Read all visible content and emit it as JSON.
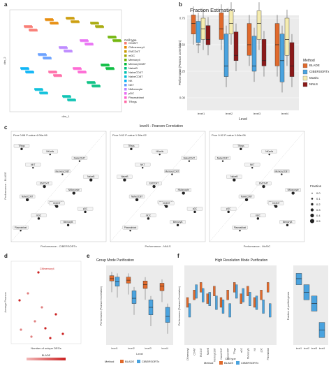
{
  "panels": {
    "a": {
      "label": "a",
      "xaxis": "dim_1",
      "yaxis": "dim_2",
      "legend_title": "Cell type",
      "cell_types": [
        {
          "name": "CD4NT",
          "color": "#f8766d"
        },
        {
          "name": "CMmemory4",
          "color": "#e58700"
        },
        {
          "name": "EMCD4T",
          "color": "#c99800"
        },
        {
          "name": "mDC",
          "color": "#a3a500"
        },
        {
          "name": "Memory4",
          "color": "#6bb100"
        },
        {
          "name": "MemoryCD8T",
          "color": "#00ba38"
        },
        {
          "name": "NaiveB",
          "color": "#00bf7d"
        },
        {
          "name": "NaiveCD4T",
          "color": "#00c0af"
        },
        {
          "name": "NaiveCD8T",
          "color": "#00bcd8"
        },
        {
          "name": "NK",
          "color": "#00b0f6"
        },
        {
          "name": "NKT",
          "color": "#619cff"
        },
        {
          "name": "NMonocyte",
          "color": "#b983ff"
        },
        {
          "name": "pDC",
          "color": "#e76bf3"
        },
        {
          "name": "Plasmablast",
          "color": "#fd61d1"
        },
        {
          "name": "TRegs",
          "color": "#ff67a4"
        }
      ]
    },
    "b": {
      "label": "b",
      "title": "Fraction Estimation",
      "ylabel": "Performance (Pearson correlation)",
      "xlabel": "Level",
      "legend_title": "Method",
      "methods": [
        {
          "name": "BLADE",
          "color": "#e06a2c"
        },
        {
          "name": "CIBERSORTx",
          "color": "#4aa3df"
        },
        {
          "name": "MuSiC",
          "color": "#f5ecb0"
        },
        {
          "name": "NNLS",
          "color": "#8b1a1a"
        }
      ],
      "ticks_y": [
        "0.00",
        "0.25",
        "0.50",
        "0.75"
      ],
      "levels": [
        "level1",
        "level2",
        "level3",
        "level4"
      ]
    },
    "c": {
      "label": "c",
      "title": "level4 - Pearson Correlation",
      "ylabel": "Performance - BLADE",
      "legend_title": "Fraction",
      "fraction_levels": [
        "0.0",
        "0.1",
        "0.2",
        "0.3",
        "0.4",
        "0.5"
      ],
      "sub": [
        {
          "stat": "Pcor 0.88  P-value 4.08e-06",
          "xlabel": "Performance - CIBERSORTx"
        },
        {
          "stat": "Pcor 0.62  P-value 1.36e-02",
          "xlabel": "Performance - NNLS"
        },
        {
          "stat": "Pcor 0.92  P-value 1.66e-06",
          "xlabel": "Performance - MuSiC"
        }
      ],
      "points": [
        "Plasmablast",
        "CMmemory4",
        "NaiveB",
        "NKcells",
        "pDC",
        "EMCD4T",
        "NaiveCD4T",
        "mDC",
        "NMonocyte",
        "NKT",
        "MemoryB",
        "NaiveCD8T",
        "MemoryCD8T",
        "TRegs",
        "CD4NT"
      ]
    },
    "d": {
      "label": "d",
      "xlabel": "Number of unique DEGs",
      "ylabel": "Average Pearson",
      "legend_title": "BLADE",
      "top_point": "CMmemory4"
    },
    "e": {
      "label": "e",
      "title": "Group Mode Purification",
      "ylabel": "Performance (Pearson Correlation)",
      "xlabel": "Level",
      "levels": [
        "level1",
        "level2",
        "level3",
        "level4"
      ],
      "legend_method": "Method",
      "legend_items": [
        "BLADE",
        "CIBERSORTx"
      ]
    },
    "f": {
      "label": "f",
      "title": "High Resolution Mode Purification",
      "ylabel": "Performance (Pearson Correlation)",
      "xlabel": "Cell type",
      "ylabel2": "Fraction of purified genes",
      "cell_types": [
        "CMmemory4",
        "CD4NT",
        "EMCD4T",
        "NaiveB",
        "MemoryCD8T",
        "NaiveCD4T",
        "NaiveCD8T",
        "TRegs",
        "mDC",
        "NMonocyte",
        "NK",
        "pDC",
        "Plasmablast"
      ],
      "levels": [
        "level1",
        "level2",
        "level3",
        "level4"
      ],
      "legend_method": "Method",
      "legend_items": [
        "BLADE",
        "CIBERSORTx"
      ]
    }
  }
}
